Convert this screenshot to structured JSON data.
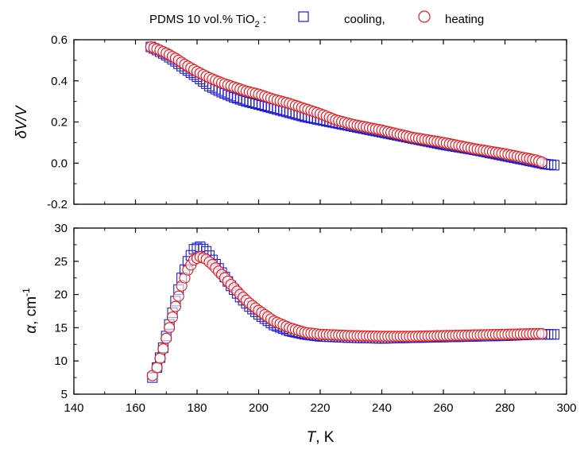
{
  "legend": {
    "prefix": "PDMS 10 vol.% TiO",
    "prefix_sub": "2",
    "prefix_sep": " :",
    "cooling_label": "cooling,",
    "heating_label": "heating",
    "cooling_color": "#1f1fcf",
    "heating_color": "#e21b1b"
  },
  "chart_data": [
    {
      "type": "scatter",
      "ylabel_italic": "δV/V",
      "xlim": [
        140,
        300
      ],
      "ylim": [
        -0.2,
        0.6
      ],
      "yticks": [
        "-0.2",
        "0.0",
        "0.2",
        "0.4",
        "0.6"
      ],
      "series": [
        {
          "name": "cooling",
          "marker": "square",
          "x": [
            165,
            167,
            170,
            173,
            176,
            180,
            184,
            188,
            192,
            196,
            200,
            205,
            210,
            215,
            220,
            225,
            230,
            240,
            250,
            260,
            270,
            280,
            290,
            293,
            295,
            296
          ],
          "y": [
            0.565,
            0.55,
            0.525,
            0.495,
            0.46,
            0.42,
            0.375,
            0.345,
            0.32,
            0.3,
            0.285,
            0.265,
            0.245,
            0.225,
            0.21,
            0.195,
            0.18,
            0.15,
            0.12,
            0.09,
            0.065,
            0.035,
            0.005,
            -0.005,
            -0.008,
            -0.01
          ]
        },
        {
          "name": "heating",
          "marker": "circle",
          "x": [
            165,
            167,
            170,
            173,
            176,
            180,
            184,
            188,
            192,
            196,
            200,
            205,
            210,
            215,
            220,
            225,
            230,
            240,
            250,
            260,
            270,
            280,
            290,
            292
          ],
          "y": [
            0.565,
            0.555,
            0.535,
            0.51,
            0.48,
            0.445,
            0.415,
            0.39,
            0.37,
            0.35,
            0.335,
            0.31,
            0.29,
            0.265,
            0.24,
            0.21,
            0.19,
            0.16,
            0.125,
            0.1,
            0.07,
            0.045,
            0.015,
            0.005
          ]
        }
      ]
    },
    {
      "type": "scatter",
      "ylabel_greek": "α",
      "ylabel_rest": ", cm",
      "ylabel_sup": "-1",
      "xlabel_italic": "T",
      "xlabel_rest": ", K",
      "xlim": [
        140,
        300
      ],
      "ylim": [
        5,
        30
      ],
      "xticks": [
        "140",
        "160",
        "180",
        "200",
        "220",
        "240",
        "260",
        "280",
        "300"
      ],
      "yticks": [
        "5",
        "10",
        "15",
        "20",
        "25",
        "30"
      ],
      "series": [
        {
          "name": "cooling",
          "marker": "square",
          "x": [
            165.5,
            167,
            169,
            171,
            173,
            175,
            177,
            179,
            181,
            183,
            185,
            188,
            191,
            194,
            197,
            200,
            205,
            210,
            215,
            220,
            230,
            240,
            250,
            260,
            270,
            280,
            290,
            293,
            295,
            296
          ],
          "y": [
            7.5,
            9.0,
            12.0,
            15.5,
            19.0,
            22.5,
            25.0,
            26.8,
            27.2,
            26.5,
            25.2,
            23.3,
            21.3,
            19.6,
            18.2,
            17.0,
            15.4,
            14.5,
            14.0,
            13.7,
            13.5,
            13.4,
            13.5,
            13.6,
            13.7,
            13.8,
            14.0,
            14.0,
            14.0,
            14.0
          ]
        },
        {
          "name": "heating",
          "marker": "circle",
          "x": [
            165.5,
            167,
            169,
            171,
            173,
            175,
            177,
            179,
            181,
            183,
            185,
            188,
            191,
            194,
            197,
            200,
            205,
            210,
            215,
            220,
            230,
            240,
            250,
            260,
            270,
            280,
            290,
            292
          ],
          "y": [
            7.8,
            9.0,
            11.8,
            15.0,
            18.2,
            21.3,
            23.7,
            25.2,
            25.7,
            25.3,
            24.5,
            23.0,
            21.5,
            20.0,
            18.7,
            17.6,
            16.0,
            15.0,
            14.3,
            14.0,
            13.8,
            13.7,
            13.7,
            13.8,
            13.9,
            14.0,
            14.1,
            14.1
          ]
        }
      ]
    }
  ]
}
